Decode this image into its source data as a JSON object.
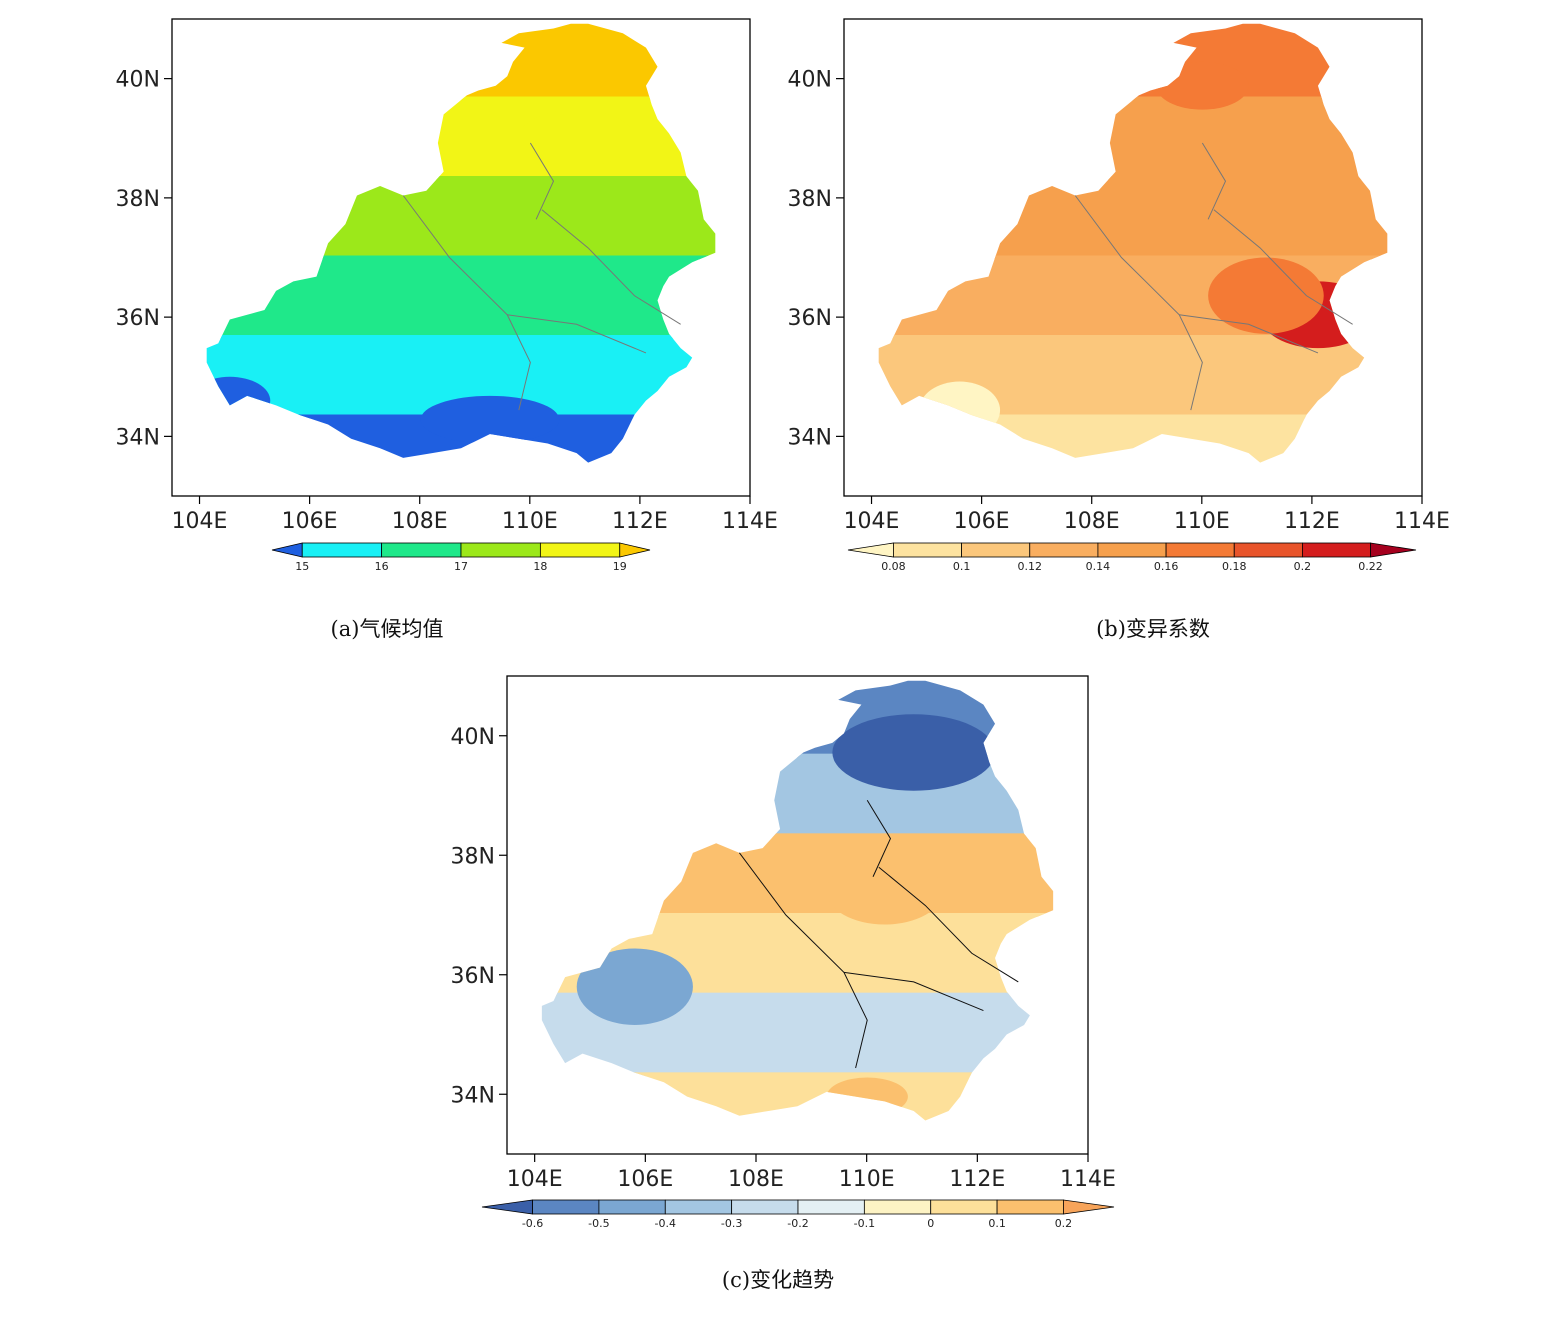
{
  "panels": [
    {
      "id": "a",
      "caption": "(a)气候均值",
      "lat_ticks": [
        "40N",
        "38N",
        "36N",
        "34N"
      ],
      "lon_ticks": [
        "104E",
        "106E",
        "108E",
        "110E",
        "112E",
        "114E"
      ],
      "colorbar": {
        "labels": [
          "15",
          "16",
          "17",
          "18",
          "19"
        ],
        "colors": [
          "#1f5fe0",
          "#19f0f5",
          "#1fe88a",
          "#9ce81a",
          "#f2f516",
          "#fbc800"
        ]
      },
      "fill_bands_north_to_south": [
        "#fbc800",
        "#f2f516",
        "#9ce81a",
        "#1fe88a",
        "#19f0f5",
        "#1f5fe0"
      ]
    },
    {
      "id": "b",
      "caption": "(b)变异系数",
      "lat_ticks": [
        "40N",
        "38N",
        "36N",
        "34N"
      ],
      "lon_ticks": [
        "104E",
        "106E",
        "108E",
        "110E",
        "112E",
        "114E"
      ],
      "colorbar": {
        "labels": [
          "0.08",
          "0.1",
          "0.12",
          "0.14",
          "0.16",
          "0.18",
          "0.2",
          "0.22"
        ],
        "colors": [
          "#fff5c4",
          "#fde3a0",
          "#fbc77c",
          "#f9ae60",
          "#f6a04d",
          "#f47a35",
          "#e8542a",
          "#d41d1d",
          "#a5001e"
        ]
      },
      "fill_bands_north_to_south": [
        "#f47a35",
        "#f6a04d",
        "#f6a04d",
        "#f9ae60",
        "#fbc77c",
        "#fde3a0"
      ]
    },
    {
      "id": "c",
      "caption": "(c)变化趋势",
      "lat_ticks": [
        "40N",
        "38N",
        "36N",
        "34N"
      ],
      "lon_ticks": [
        "104E",
        "106E",
        "108E",
        "110E",
        "112E",
        "114E"
      ],
      "colorbar": {
        "labels": [
          "-0.6",
          "-0.5",
          "-0.4",
          "-0.3",
          "-0.2",
          "-0.1",
          "0",
          "0.1",
          "0.2"
        ],
        "colors": [
          "#3a5fa8",
          "#5b86c2",
          "#7ba7d2",
          "#a3c6e2",
          "#c6dcec",
          "#e4f0f4",
          "#fdf3c4",
          "#fde09a",
          "#fbc06e",
          "#f7a45a"
        ]
      },
      "fill_bands_north_to_south": [
        "#5b86c2",
        "#a3c6e2",
        "#fbc06e",
        "#fde09a",
        "#c6dcec",
        "#fde09a"
      ]
    }
  ]
}
